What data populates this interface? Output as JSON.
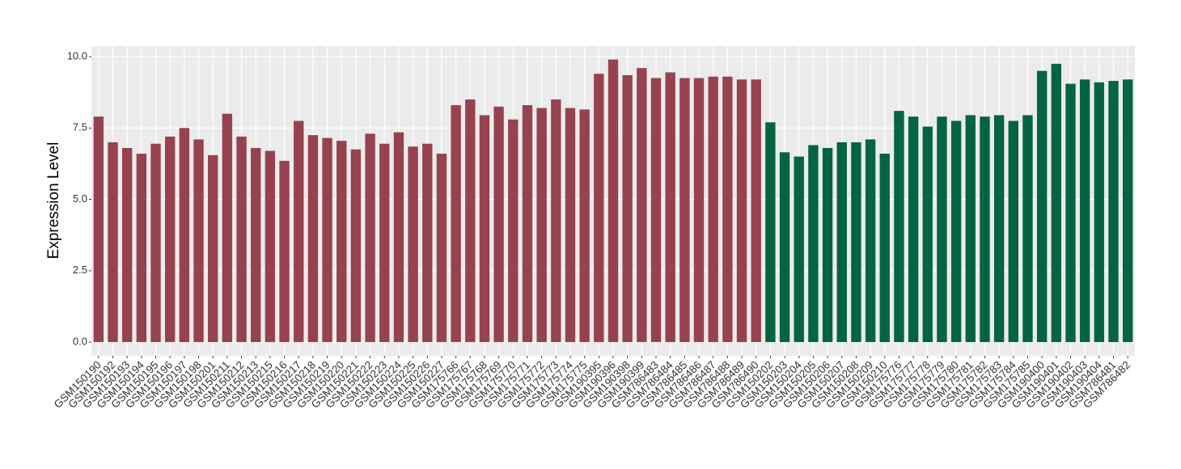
{
  "chart_data": {
    "type": "bar",
    "y_label": "Expression Level",
    "ylim": [
      -0.48,
      10.37
    ],
    "yticks": [
      {
        "value": 0,
        "label": "0.0"
      },
      2.5,
      {
        "value": 5,
        "label": "5.0"
      },
      7.5,
      {
        "value": 10,
        "label": "10.0"
      }
    ],
    "grid": true,
    "groups": [
      {
        "color": "#96424f",
        "categories": [
          "GSM150190",
          "GSM150192",
          "GSM150193",
          "GSM150194",
          "GSM150195",
          "GSM150196",
          "GSM150197",
          "GSM150198",
          "GSM150201",
          "GSM150211",
          "GSM150212",
          "GSM150213",
          "GSM150215",
          "GSM150216",
          "GSM150217",
          "GSM150218",
          "GSM150219",
          "GSM150220",
          "GSM150221",
          "GSM150222",
          "GSM150223",
          "GSM150224",
          "GSM150225",
          "GSM150226",
          "GSM150227",
          "GSM175766",
          "GSM175767",
          "GSM175768",
          "GSM175769",
          "GSM175770",
          "GSM175771",
          "GSM175772",
          "GSM175773",
          "GSM175774",
          "GSM175775",
          "GSM190395",
          "GSM190396",
          "GSM190398",
          "GSM190399",
          "GSM786483",
          "GSM786484",
          "GSM786485",
          "GSM786486",
          "GSM786487",
          "GSM786488",
          "GSM786489",
          "GSM786490"
        ],
        "values": [
          7.9,
          7.0,
          6.8,
          6.6,
          6.95,
          7.2,
          7.5,
          7.1,
          6.55,
          8.0,
          7.2,
          6.8,
          6.7,
          6.35,
          7.75,
          7.25,
          7.15,
          7.05,
          6.75,
          7.3,
          6.95,
          7.35,
          6.85,
          6.95,
          6.6,
          8.3,
          8.5,
          7.95,
          8.25,
          7.8,
          8.3,
          8.2,
          8.5,
          8.2,
          8.15,
          9.4,
          9.9,
          9.35,
          9.6,
          9.25,
          9.45,
          9.25,
          9.25,
          9.3,
          9.3,
          9.2,
          9.2
        ]
      },
      {
        "color": "#036443",
        "categories": [
          "GSM150202",
          "GSM150203",
          "GSM150204",
          "GSM150205",
          "GSM150206",
          "GSM150207",
          "GSM150208",
          "GSM150209",
          "GSM150210",
          "GSM175776",
          "GSM175777",
          "GSM175778",
          "GSM175779",
          "GSM175780",
          "GSM175781",
          "GSM175782",
          "GSM175783",
          "GSM175784",
          "GSM175785",
          "GSM190400",
          "GSM190401",
          "GSM190402",
          "GSM190403",
          "GSM190404",
          "GSM786481",
          "GSM786482"
        ],
        "values": [
          7.7,
          6.65,
          6.5,
          6.9,
          6.8,
          7.0,
          7.0,
          7.1,
          6.6,
          8.1,
          7.9,
          7.55,
          7.9,
          7.75,
          7.95,
          7.9,
          7.95,
          7.75,
          7.95,
          9.5,
          9.75,
          9.05,
          9.2,
          9.1,
          9.15,
          9.2
        ]
      }
    ]
  }
}
